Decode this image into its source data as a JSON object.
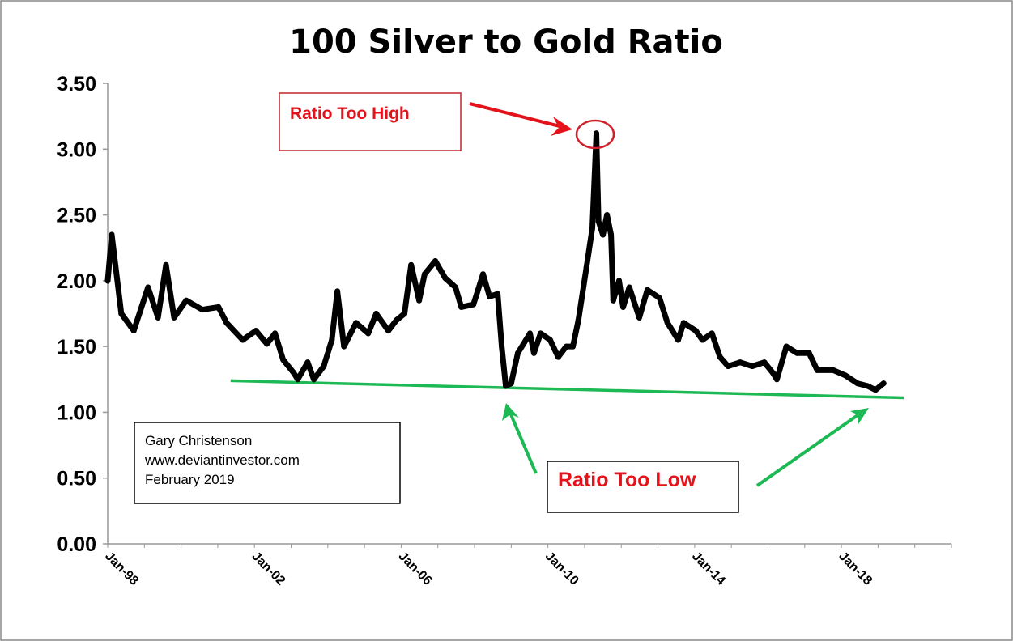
{
  "chart_data": {
    "type": "line",
    "title": "100 Silver to Gold Ratio",
    "xlabel": "",
    "ylabel": "",
    "xlim": [
      1998,
      2021
    ],
    "ylim": [
      0,
      3.5
    ],
    "grid": false,
    "legend": "none",
    "y_ticks": [
      "0.00",
      "0.50",
      "1.00",
      "1.50",
      "2.00",
      "2.50",
      "3.00",
      "3.50"
    ],
    "x_ticks": [
      {
        "label": "Jan-98",
        "year": 1998
      },
      {
        "label": "Jan-02",
        "year": 2002
      },
      {
        "label": "Jan-06",
        "year": 2006
      },
      {
        "label": "Jan-10",
        "year": 2010
      },
      {
        "label": "Jan-14",
        "year": 2014
      },
      {
        "label": "Jan-18",
        "year": 2018
      }
    ],
    "series_color": "#000000",
    "x": [
      1998.0,
      1998.11,
      1998.37,
      1998.71,
      1999.1,
      1999.37,
      1999.59,
      1999.81,
      2000.14,
      2000.58,
      2001.02,
      2001.24,
      2001.68,
      2002.04,
      2002.34,
      2002.56,
      2002.78,
      2003.07,
      2003.18,
      2003.45,
      2003.62,
      2003.89,
      2004.11,
      2004.26,
      2004.44,
      2004.77,
      2005.1,
      2005.32,
      2005.65,
      2005.87,
      2006.09,
      2006.27,
      2006.49,
      2006.64,
      2006.93,
      2007.2,
      2007.48,
      2007.64,
      2007.97,
      2008.23,
      2008.41,
      2008.63,
      2008.74,
      2008.85,
      2009.0,
      2009.18,
      2009.51,
      2009.62,
      2009.8,
      2010.06,
      2010.28,
      2010.5,
      2010.68,
      2010.83,
      2011.05,
      2011.21,
      2011.32,
      2011.38,
      2011.5,
      2011.61,
      2011.72,
      2011.78,
      2011.94,
      2012.05,
      2012.22,
      2012.49,
      2012.71,
      2013.04,
      2013.26,
      2013.55,
      2013.7,
      2014.03,
      2014.21,
      2014.47,
      2014.69,
      2014.91,
      2015.24,
      2015.57,
      2015.9,
      2016.13,
      2016.24,
      2016.5,
      2016.79,
      2017.12,
      2017.34,
      2017.78,
      2018.11,
      2018.44,
      2018.71,
      2018.93,
      2019.15
    ],
    "values": [
      2.0,
      2.35,
      1.75,
      1.62,
      1.95,
      1.72,
      2.12,
      1.72,
      1.85,
      1.78,
      1.8,
      1.68,
      1.55,
      1.62,
      1.52,
      1.6,
      1.4,
      1.3,
      1.25,
      1.38,
      1.25,
      1.35,
      1.55,
      1.92,
      1.5,
      1.68,
      1.6,
      1.75,
      1.62,
      1.7,
      1.75,
      2.12,
      1.85,
      2.05,
      2.15,
      2.02,
      1.95,
      1.8,
      1.82,
      2.05,
      1.88,
      1.9,
      1.5,
      1.2,
      1.22,
      1.45,
      1.6,
      1.45,
      1.6,
      1.55,
      1.42,
      1.5,
      1.5,
      1.7,
      2.1,
      2.4,
      3.12,
      2.45,
      2.35,
      2.5,
      2.35,
      1.85,
      2.0,
      1.8,
      1.95,
      1.72,
      1.93,
      1.87,
      1.68,
      1.55,
      1.68,
      1.62,
      1.55,
      1.6,
      1.42,
      1.35,
      1.38,
      1.35,
      1.38,
      1.3,
      1.25,
      1.5,
      1.45,
      1.45,
      1.32,
      1.32,
      1.28,
      1.22,
      1.2,
      1.17,
      1.22
    ],
    "trendline": {
      "color": "#1db954",
      "x": [
        2001.35,
        2019.7
      ],
      "values": [
        1.24,
        1.11
      ]
    },
    "annotations": {
      "high_label": "Ratio Too High",
      "low_label": "Ratio Too Low",
      "high_color": "#e3121b",
      "low_arrow_color": "#1db954"
    },
    "credit": {
      "name": "Gary Christenson",
      "site": "www.deviantinvestor.com",
      "date": "February 2019"
    }
  }
}
